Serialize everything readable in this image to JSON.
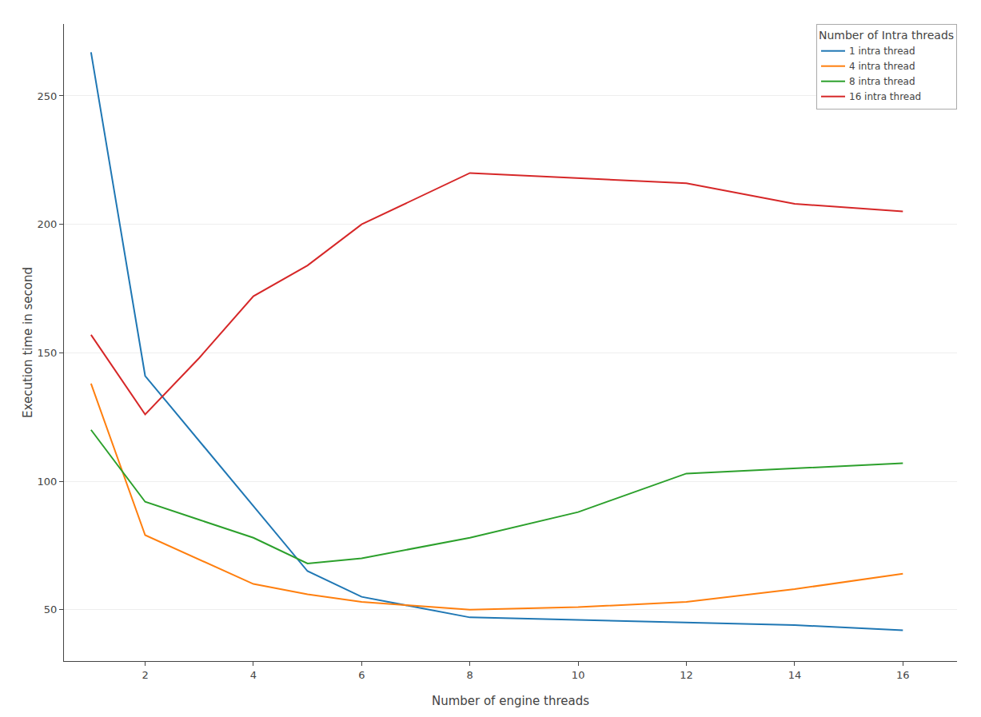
{
  "chart_data": {
    "type": "line",
    "xlabel": "Number of engine threads",
    "ylabel": "Execution time in second",
    "legend_title": "Number of Intra threads",
    "series": [
      {
        "name": "1 intra thread",
        "color": "#1f77b4",
        "x": [
          1,
          2,
          5,
          6,
          8,
          10,
          12,
          14,
          16
        ],
        "values": [
          267,
          141,
          65,
          55,
          47,
          46,
          45,
          44,
          42
        ]
      },
      {
        "name": "4 intra thread",
        "color": "#ff7f0e",
        "x": [
          1,
          2,
          4,
          5,
          6,
          8,
          10,
          12,
          14,
          16
        ],
        "values": [
          138,
          79,
          60,
          56,
          53,
          50,
          51,
          53,
          58,
          64
        ]
      },
      {
        "name": "8 intra thread",
        "color": "#2ca02c",
        "x": [
          1,
          2,
          3,
          4,
          5,
          6,
          8,
          10,
          12,
          14,
          16
        ],
        "values": [
          120,
          92,
          85,
          78,
          68,
          70,
          78,
          88,
          103,
          105,
          107
        ]
      },
      {
        "name": "16 intra thread",
        "color": "#d62728",
        "x": [
          1,
          2,
          3,
          4,
          5,
          6,
          8,
          10,
          12,
          14,
          16
        ],
        "values": [
          157,
          126,
          148,
          172,
          184,
          200,
          220,
          218,
          216,
          208,
          205
        ]
      }
    ],
    "xlim": [
      0.5,
      17
    ],
    "xticks": [
      2,
      4,
      6,
      8,
      10,
      12,
      14,
      16
    ],
    "ylim": [
      30,
      278
    ],
    "yticks": [
      50,
      100,
      150,
      200,
      250
    ],
    "grid": "y",
    "legend": "upper right"
  }
}
